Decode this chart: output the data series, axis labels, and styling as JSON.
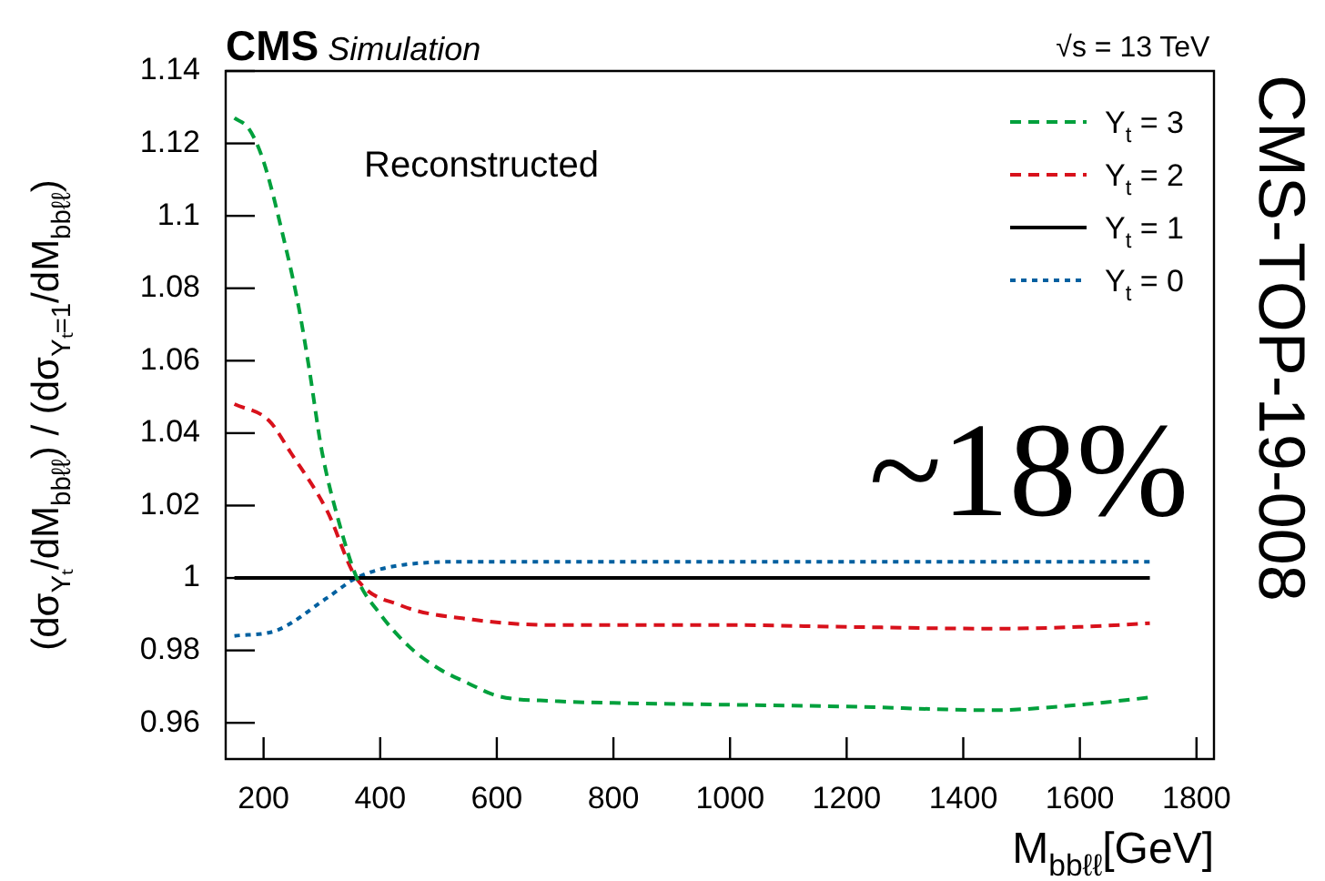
{
  "chart_data": {
    "type": "line",
    "title": "CMS Simulation",
    "subtitle": "√s = 13 TeV",
    "xlabel": "M$_{bbℓℓ}$[GeV]",
    "ylabel": "(dσ$_{Yₜ}$/dM$_{bbℓℓ}$) / (dσ$_{Yₜ=1}$/dM$_{bbℓℓ}$)",
    "annotations": [
      "Reconstructed",
      "~18%",
      "CMS-TOP-19-008"
    ],
    "series": [
      {
        "name": "Y$_{t}$ = 3",
        "color": "#00a03c",
        "line_style": "dashed",
        "x": [
          150,
          175,
          200,
          237,
          260,
          278,
          300,
          330,
          360,
          400,
          450,
          500,
          550,
          600,
          700,
          800,
          1000,
          1200,
          1450,
          1600,
          1720
        ],
        "values": [
          1.127,
          1.124,
          1.115,
          1.092,
          1.075,
          1.058,
          1.035,
          1.015,
          1.0,
          0.99,
          0.981,
          0.975,
          0.971,
          0.9675,
          0.966,
          0.9655,
          0.965,
          0.9645,
          0.9635,
          0.965,
          0.967
        ]
      },
      {
        "name": "Y$_{t}$ = 2",
        "color": "#d8111b",
        "line_style": "dashed",
        "x": [
          150,
          209,
          247,
          309,
          359,
          434,
          559,
          700,
          1000,
          1200,
          1450,
          1600,
          1720
        ],
        "values": [
          1.048,
          1.0435,
          1.0345,
          1.0185,
          1.0,
          0.9925,
          0.9885,
          0.987,
          0.987,
          0.9865,
          0.986,
          0.9865,
          0.9875
        ]
      },
      {
        "name": "Y$_{t}$ = 1",
        "color": "#000000",
        "line_style": "solid",
        "x": [
          150,
          1720
        ],
        "values": [
          1,
          1
        ]
      },
      {
        "name": "Y$_{t}$ = 0",
        "color": "#0060a0",
        "line_style": "dotted",
        "x": [
          150,
          222,
          309,
          359,
          434,
          559,
          700,
          1000,
          1400,
          1720
        ],
        "values": [
          0.984,
          0.9855,
          0.9945,
          1.0,
          1.0035,
          1.0045,
          1.0045,
          1.0045,
          1.0045,
          1.0045
        ]
      }
    ],
    "xlim": [
      135,
      1830
    ],
    "xticks": [
      200,
      400,
      600,
      800,
      1000,
      1200,
      1400,
      1600,
      1800
    ],
    "ylim": [
      0.95,
      1.14
    ],
    "yticks": [
      0.96,
      0.98,
      1,
      1.02,
      1.04,
      1.06,
      1.08,
      1.1,
      1.12,
      1.14
    ],
    "grid": false,
    "legend": "top right",
    "marker": "none"
  }
}
